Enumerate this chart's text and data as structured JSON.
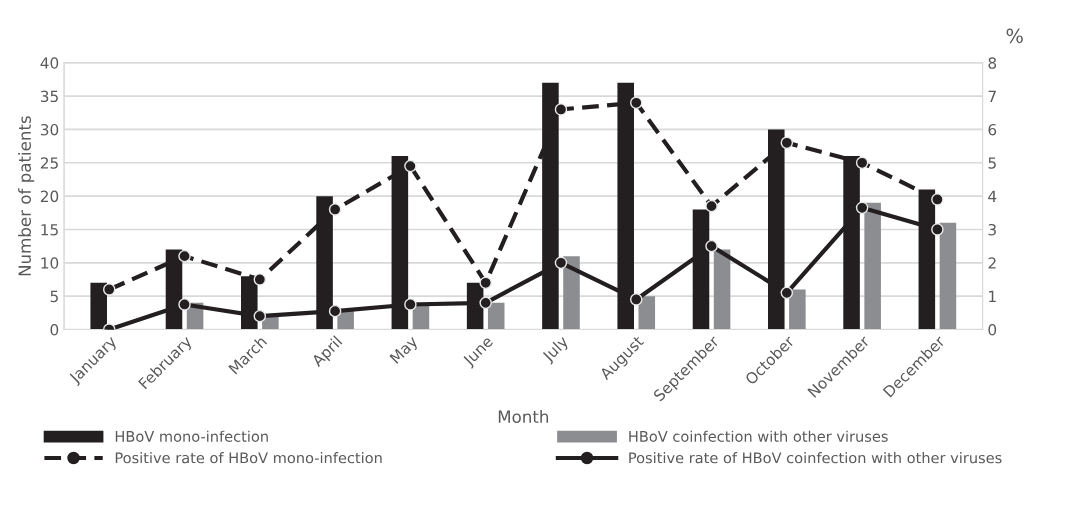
{
  "chart_data": {
    "type": "bar",
    "xlabel": "Month",
    "ylabel": "Number of patients",
    "y2label": "%",
    "categories": [
      "January",
      "February",
      "March",
      "April",
      "May",
      "June",
      "July",
      "August",
      "September",
      "October",
      "November",
      "December"
    ],
    "series": [
      {
        "name": "HBoV mono-infection",
        "color": "#231f20",
        "values": [
          7,
          12,
          8,
          20,
          26,
          7,
          37,
          37,
          18,
          30,
          26,
          21
        ]
      },
      {
        "name": "HBoV coinfection with other viruses",
        "color": "#8c8d90",
        "values": [
          0,
          4,
          2,
          3,
          4,
          4,
          11,
          5,
          12,
          6,
          19,
          16
        ]
      },
      {
        "name": "Positive rate of HBoV mono-infection",
        "type": "line",
        "axis": "y2",
        "color": "#231f20",
        "line_style": "dashed",
        "marker": "circle",
        "values": [
          1.2,
          2.2,
          1.5,
          3.6,
          4.9,
          1.4,
          6.6,
          6.8,
          3.7,
          5.6,
          5.0,
          3.9
        ]
      },
      {
        "name": "Positive rate of HBoV coinfection with other viruses",
        "type": "line",
        "axis": "y2",
        "color": "#231f20",
        "line_style": "solid",
        "marker": "circle",
        "values": [
          0,
          0.75,
          0.4,
          0.55,
          0.75,
          0.8,
          2.0,
          0.9,
          2.5,
          1.1,
          3.65,
          3.0
        ]
      }
    ],
    "ylim": [
      0,
      40
    ],
    "yticks": [
      0,
      5,
      10,
      15,
      20,
      25,
      30,
      35,
      40
    ],
    "y2lim": [
      0,
      8
    ],
    "y2ticks": [
      0,
      1,
      2,
      3,
      4,
      5,
      6,
      7,
      8
    ],
    "grid": "y",
    "legend": "bottom"
  }
}
